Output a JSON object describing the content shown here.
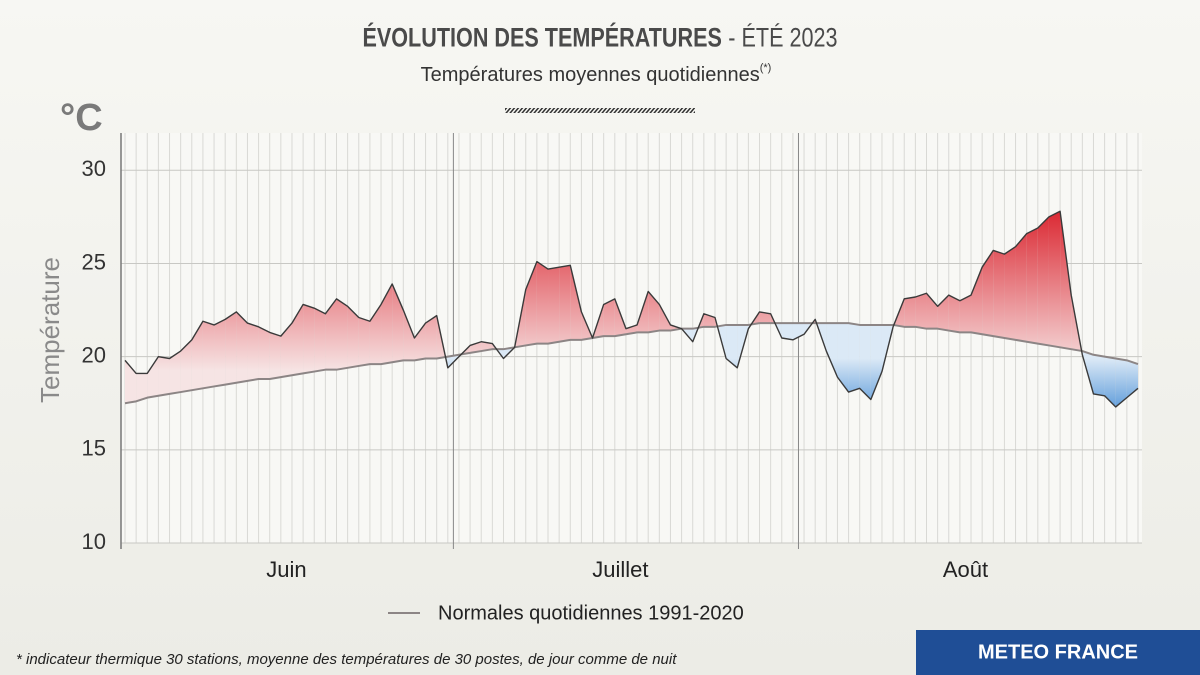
{
  "chart_data": {
    "type": "line-area",
    "title": {
      "main": "ÉVOLUTION DES TEMPÉRATURES",
      "period": "- ÉTÉ 2023"
    },
    "subtitle": {
      "text": "Températures moyennes quotidiennes",
      "note": "(*)"
    },
    "y_unit": "°C",
    "y_label": "Température",
    "categories": [
      null,
      null,
      null,
      null,
      null,
      null,
      null,
      null,
      null,
      null,
      null,
      null,
      null,
      null,
      null,
      "Juin",
      null,
      null,
      null,
      null,
      null,
      null,
      null,
      null,
      null,
      null,
      null,
      null,
      null,
      null,
      null,
      null,
      null,
      null,
      null,
      null,
      null,
      null,
      null,
      null,
      null,
      null,
      null,
      null,
      null,
      "Juillet",
      null,
      null,
      null,
      null,
      null,
      null,
      null,
      null,
      null,
      null,
      null,
      null,
      null,
      null,
      null,
      null,
      null,
      null,
      null,
      null,
      null,
      null,
      null,
      null,
      null,
      null,
      null,
      null,
      null,
      null,
      "Août",
      null,
      null,
      null,
      null,
      null,
      null,
      null,
      null,
      null,
      null,
      null,
      null,
      null,
      null,
      null
    ],
    "series": [
      {
        "color": "#3a3a3a",
        "above_color": "#d8141f",
        "below_color": "#2f7fd0",
        "values": [
          19.8,
          19.1,
          19.1,
          20.0,
          19.9,
          20.3,
          20.9,
          21.9,
          21.7,
          22.0,
          22.4,
          21.8,
          21.6,
          21.3,
          21.1,
          21.8,
          22.8,
          22.6,
          22.3,
          23.1,
          22.7,
          22.1,
          21.9,
          22.8,
          23.9,
          22.5,
          21.0,
          21.8,
          22.2,
          19.4,
          20.0,
          20.6,
          20.8,
          20.7,
          19.9,
          20.5,
          23.6,
          25.1,
          24.7,
          24.8,
          24.9,
          22.4,
          21.0,
          22.8,
          23.1,
          21.5,
          21.7,
          23.5,
          22.8,
          21.7,
          21.5,
          20.8,
          22.3,
          22.1,
          19.9,
          19.4,
          21.5,
          22.4,
          22.3,
          21.0,
          20.9,
          21.2,
          22.0,
          20.3,
          18.9,
          18.1,
          18.3,
          17.7,
          19.2,
          21.6,
          23.1,
          23.2,
          23.4,
          22.7,
          23.3,
          23.0,
          23.3,
          24.8,
          25.7,
          25.5,
          25.9,
          26.6,
          26.9,
          27.5,
          27.8,
          23.3,
          20.1,
          18.0,
          17.9,
          17.3,
          17.8,
          18.3
        ]
      },
      {
        "name": "Normales quotidiennes 1991-2020",
        "color": "#8c8585",
        "values": [
          17.5,
          17.6,
          17.8,
          17.9,
          18.0,
          18.1,
          18.2,
          18.3,
          18.4,
          18.5,
          18.6,
          18.7,
          18.8,
          18.8,
          18.9,
          19.0,
          19.1,
          19.2,
          19.3,
          19.3,
          19.4,
          19.5,
          19.6,
          19.6,
          19.7,
          19.8,
          19.8,
          19.9,
          19.9,
          20.0,
          20.1,
          20.2,
          20.3,
          20.4,
          20.4,
          20.5,
          20.6,
          20.7,
          20.7,
          20.8,
          20.9,
          20.9,
          21.0,
          21.1,
          21.1,
          21.2,
          21.3,
          21.3,
          21.4,
          21.4,
          21.5,
          21.5,
          21.6,
          21.6,
          21.7,
          21.7,
          21.7,
          21.8,
          21.8,
          21.8,
          21.8,
          21.8,
          21.8,
          21.8,
          21.8,
          21.8,
          21.7,
          21.7,
          21.7,
          21.7,
          21.6,
          21.6,
          21.5,
          21.5,
          21.4,
          21.3,
          21.3,
          21.2,
          21.1,
          21.0,
          20.9,
          20.8,
          20.7,
          20.6,
          20.5,
          20.4,
          20.3,
          20.1,
          20.0,
          19.9,
          19.8,
          19.6
        ]
      }
    ],
    "ylim": [
      10,
      32
    ],
    "yticks": [
      10,
      15,
      20,
      25,
      30
    ],
    "grid": true,
    "footnote": "* indicateur thermique 30 stations, moyenne des températures de 30 postes, de jour comme de nuit",
    "brand": "METEO FRANCE"
  }
}
